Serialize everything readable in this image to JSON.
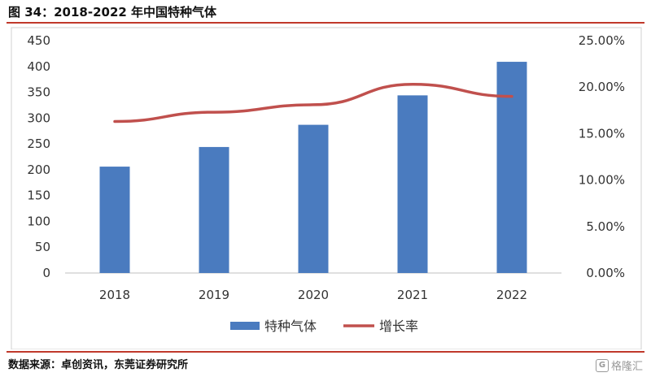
{
  "header": {
    "title": "图 34：2018-2022 年中国特种气体"
  },
  "footer": {
    "source": "数据来源：卓创资讯，东莞证券研究所",
    "watermark": "格隆汇",
    "watermark_logo": "G"
  },
  "chart_data": {
    "type": "bar",
    "categories": [
      "2018",
      "2019",
      "2020",
      "2021",
      "2022"
    ],
    "series": [
      {
        "name": "特种气体",
        "type": "bar",
        "axis": "left",
        "values": [
          206,
          244,
          287,
          344,
          409
        ],
        "color": "#4a7bbf"
      },
      {
        "name": "增长率",
        "type": "line",
        "axis": "right",
        "values": [
          0.163,
          0.173,
          0.181,
          0.203,
          0.19
        ],
        "color": "#c0504d"
      }
    ],
    "ylim_left": [
      0,
      450
    ],
    "yticks_left": [
      "0",
      "50",
      "100",
      "150",
      "200",
      "250",
      "300",
      "350",
      "400",
      "450"
    ],
    "ylim_right": [
      0,
      0.25
    ],
    "yticks_right": [
      "0.00%",
      "5.00%",
      "10.00%",
      "15.00%",
      "20.00%",
      "25.00%"
    ],
    "grid": false,
    "legend_position": "bottom"
  }
}
